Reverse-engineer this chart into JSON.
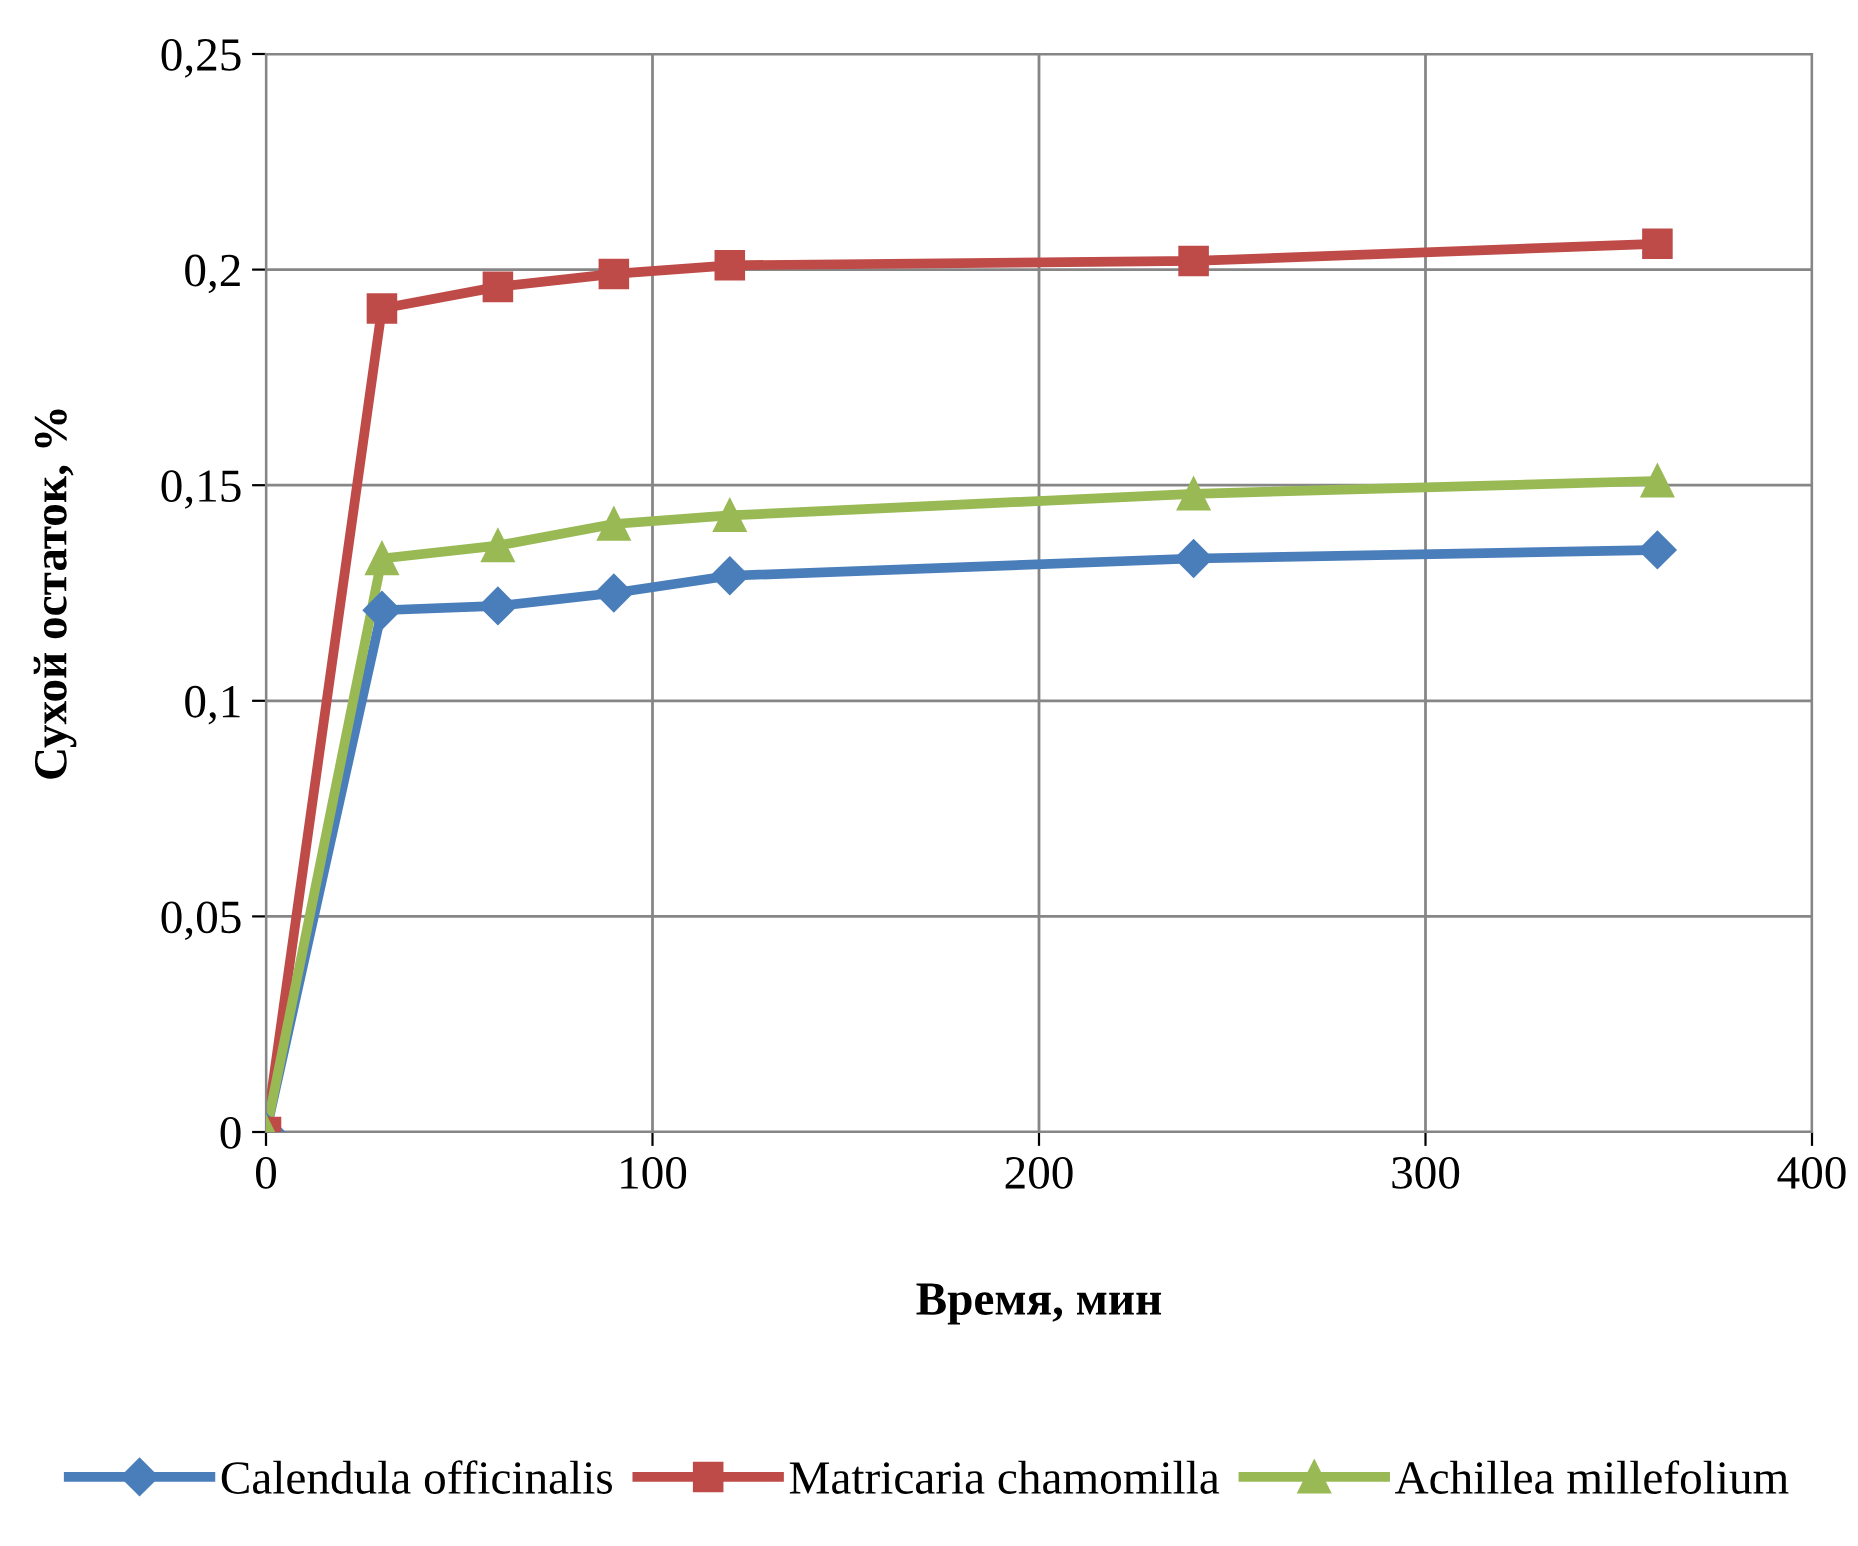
{
  "chart_data": {
    "type": "line",
    "xlabel": "Время, мин",
    "ylabel": "Сухой остаток, %",
    "x": [
      0,
      30,
      60,
      90,
      120,
      240,
      360
    ],
    "series": [
      {
        "name": "Calendula officinalis",
        "color": "#4a7ebb",
        "marker": "diamond",
        "values": [
          0,
          0.121,
          0.122,
          0.125,
          0.129,
          0.133,
          0.135
        ]
      },
      {
        "name": "Matricaria chamomilla",
        "color": "#be4b48",
        "marker": "square",
        "values": [
          0,
          0.191,
          0.196,
          0.199,
          0.201,
          0.202,
          0.206
        ]
      },
      {
        "name": "Achillea millefolium",
        "color": "#98b954",
        "marker": "triangle",
        "values": [
          0,
          0.133,
          0.136,
          0.141,
          0.143,
          0.148,
          0.151
        ]
      }
    ],
    "xlim": [
      0,
      400
    ],
    "xticks": [
      0,
      100,
      200,
      300,
      400
    ],
    "ylim": [
      0,
      0.25
    ],
    "yticks": [
      {
        "value": 0,
        "label": "0"
      },
      {
        "value": 0.05,
        "label": "0,05"
      },
      {
        "value": 0.1,
        "label": "0,1"
      },
      {
        "value": 0.15,
        "label": "0,15"
      },
      {
        "value": 0.2,
        "label": "0,2"
      },
      {
        "value": 0.25,
        "label": "0,25"
      }
    ],
    "grid": true,
    "legend": "bottom",
    "line_style": "solid"
  }
}
